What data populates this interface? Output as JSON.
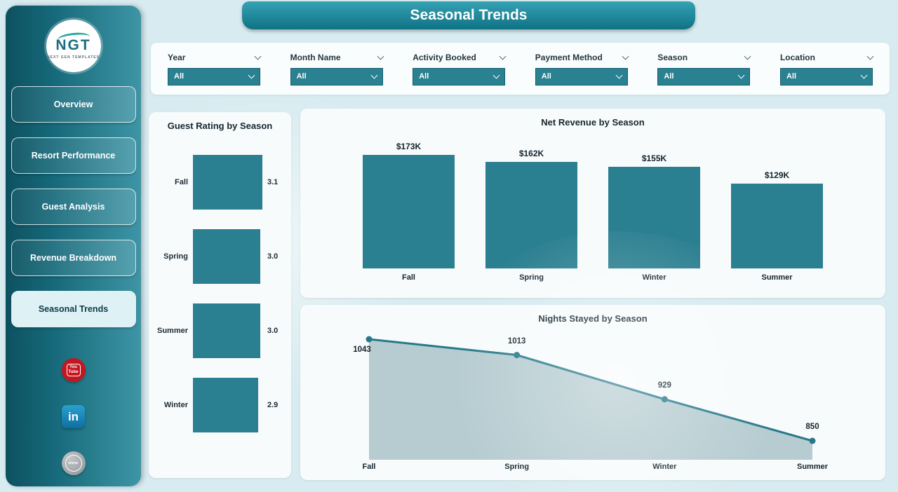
{
  "header": {
    "title": "Seasonal Trends"
  },
  "sidebar": {
    "logo": {
      "brand": "NGT",
      "subtitle": "NEXT GEN TEMPLATES"
    },
    "items": [
      {
        "label": "Overview",
        "active": false
      },
      {
        "label": "Resort Performance",
        "active": false
      },
      {
        "label": "Guest Analysis",
        "active": false
      },
      {
        "label": "Revenue Breakdown",
        "active": false
      },
      {
        "label": "Seasonal Trends",
        "active": true
      }
    ],
    "social": [
      {
        "name": "youtube",
        "label": "You Tube"
      },
      {
        "name": "linkedin",
        "label": "in"
      },
      {
        "name": "website",
        "label": "www"
      }
    ]
  },
  "filters": [
    {
      "label": "Year",
      "value": "All"
    },
    {
      "label": "Month Name",
      "value": "All"
    },
    {
      "label": "Activity Booked",
      "value": "All"
    },
    {
      "label": "Payment Method",
      "value": "All"
    },
    {
      "label": "Season",
      "value": "All"
    },
    {
      "label": "Location",
      "value": "All"
    }
  ],
  "colors": {
    "accent_teal": "#2a7f90",
    "sidebar_dark": "#0d5160",
    "area_fill": "#aec7cc",
    "background": "#d7ebf0"
  },
  "chart_data": [
    {
      "type": "bar",
      "orientation": "horizontal",
      "title": "Guest Rating by Season",
      "categories": [
        "Fall",
        "Spring",
        "Summer",
        "Winter"
      ],
      "values": [
        3.1,
        3.0,
        3.0,
        2.9
      ],
      "value_labels": [
        "3.1",
        "3.0",
        "3.0",
        "2.9"
      ],
      "xlabel": "",
      "ylabel": "",
      "xlim": [
        0,
        3.1
      ],
      "grid": false,
      "legend": false
    },
    {
      "type": "bar",
      "orientation": "vertical",
      "title": "Net Revenue by Season",
      "categories": [
        "Fall",
        "Spring",
        "Winter",
        "Summer"
      ],
      "values": [
        173,
        162,
        155,
        129
      ],
      "value_labels": [
        "$173K",
        "$162K",
        "$155K",
        "$129K"
      ],
      "unit": "K USD",
      "xlabel": "",
      "ylabel": "",
      "ylim": [
        0,
        173
      ],
      "grid": false,
      "legend": false
    },
    {
      "type": "area",
      "title": "Nights Stayed by Season",
      "categories": [
        "Fall",
        "Spring",
        "Winter",
        "Summer"
      ],
      "values": [
        1043,
        1013,
        929,
        850
      ],
      "value_labels": [
        "1043",
        "1013",
        "929",
        "850"
      ],
      "xlabel": "",
      "ylabel": "",
      "ylim": [
        850,
        1043
      ],
      "grid": false,
      "legend": false
    }
  ]
}
